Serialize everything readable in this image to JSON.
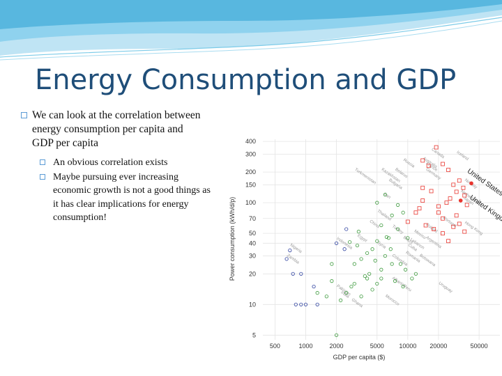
{
  "slide": {
    "title": "Energy Consumption and GDP",
    "bullets": [
      {
        "text": "We can look at the correlation between energy consumption per capita and GDP per capita",
        "sub_bullets": [
          "An obvious correlation exists",
          "Maybe pursuing ever increasing economic growth is not  a good things as it has clear implications for energy consumption!"
        ]
      }
    ]
  },
  "colors": {
    "title": "#1f4e79",
    "bullet": "#5b9bd5",
    "banner": "#4fb3dc",
    "red": "#e8352e",
    "green": "#3c9a3c",
    "blue": "#2a3e9e"
  },
  "chart_data": {
    "type": "scatter",
    "xlabel": "GDP per capita ($)",
    "ylabel": "Power consumption (kWh/d/p)",
    "x_scale": "log",
    "y_scale": "log",
    "xlim": [
      380,
      80000
    ],
    "ylim": [
      4.5,
      420
    ],
    "x_ticks": [
      500,
      1000,
      2000,
      5000,
      10000,
      20000,
      50000
    ],
    "y_ticks": [
      5,
      10,
      20,
      30,
      40,
      50,
      70,
      100,
      150,
      200,
      300,
      400
    ],
    "series": [
      {
        "color": "#e8352e",
        "marker": "square",
        "points": [
          [
            16000,
            230
          ],
          [
            19000,
            350
          ],
          [
            14000,
            260
          ],
          [
            22000,
            240
          ],
          [
            25000,
            210
          ],
          [
            32000,
            165
          ],
          [
            35000,
            140
          ],
          [
            28000,
            150
          ],
          [
            30000,
            128
          ],
          [
            36000,
            118
          ],
          [
            26000,
            110
          ],
          [
            38000,
            95
          ],
          [
            20000,
            92
          ],
          [
            24000,
            100
          ],
          [
            17000,
            130
          ],
          [
            14000,
            140
          ],
          [
            30000,
            75
          ],
          [
            22000,
            70
          ],
          [
            12000,
            80
          ],
          [
            15000,
            60
          ],
          [
            10000,
            65
          ],
          [
            22000,
            50
          ],
          [
            18000,
            55
          ],
          [
            32000,
            62
          ],
          [
            36000,
            52
          ],
          [
            28000,
            58
          ],
          [
            25000,
            42
          ],
          [
            20000,
            80
          ],
          [
            14000,
            105
          ],
          [
            13000,
            88
          ]
        ]
      },
      {
        "color": "#e8352e",
        "marker": "dot",
        "points": [
          [
            42000,
            155
          ],
          [
            33000,
            105
          ]
        ]
      },
      {
        "color": "#3c9a3c",
        "marker": "circle",
        "points": [
          [
            6000,
            120
          ],
          [
            5000,
            100
          ],
          [
            8000,
            95
          ],
          [
            9000,
            80
          ],
          [
            7000,
            75
          ],
          [
            5500,
            60
          ],
          [
            8000,
            55
          ],
          [
            6500,
            45
          ],
          [
            5000,
            42
          ],
          [
            4500,
            35
          ],
          [
            4000,
            32
          ],
          [
            3500,
            28
          ],
          [
            3000,
            25
          ],
          [
            6000,
            30
          ],
          [
            7000,
            25
          ],
          [
            5500,
            22
          ],
          [
            9500,
            22
          ],
          [
            8500,
            25
          ],
          [
            12000,
            20
          ],
          [
            11000,
            18
          ],
          [
            9000,
            15
          ],
          [
            5500,
            18
          ],
          [
            4000,
            18
          ],
          [
            3000,
            16
          ],
          [
            2800,
            15
          ],
          [
            2500,
            13
          ],
          [
            2200,
            11
          ],
          [
            3500,
            12
          ],
          [
            4500,
            14
          ],
          [
            5000,
            16
          ],
          [
            2000,
            5
          ],
          [
            1600,
            12
          ],
          [
            1800,
            17
          ],
          [
            1300,
            13
          ],
          [
            1800,
            25
          ],
          [
            4200,
            20
          ],
          [
            3800,
            19
          ],
          [
            7500,
            17
          ],
          [
            6800,
            35
          ],
          [
            10000,
            45
          ],
          [
            3200,
            38
          ],
          [
            2700,
            41
          ],
          [
            3300,
            52
          ],
          [
            6200,
            46
          ],
          [
            4800,
            27
          ]
        ]
      },
      {
        "color": "#2a3e9e",
        "marker": "circle",
        "points": [
          [
            700,
            34
          ],
          [
            650,
            28
          ],
          [
            750,
            20
          ],
          [
            900,
            20
          ],
          [
            900,
            10
          ],
          [
            800,
            10
          ],
          [
            1000,
            10
          ],
          [
            1200,
            15
          ],
          [
            1300,
            10
          ],
          [
            2500,
            55
          ],
          [
            2000,
            40
          ],
          [
            2400,
            35
          ]
        ]
      }
    ],
    "annotations": [
      {
        "text": "Canada",
        "x": 17000,
        "y": 330
      },
      {
        "text": "Iceland",
        "x": 30000,
        "y": 310
      },
      {
        "text": "Australia",
        "x": 14000,
        "y": 270
      },
      {
        "text": "Russia",
        "x": 9000,
        "y": 260
      },
      {
        "text": "France",
        "x": 15000,
        "y": 240
      },
      {
        "text": "Germany",
        "x": 15000,
        "y": 210
      },
      {
        "text": "Turkmenistan",
        "x": 3000,
        "y": 210
      },
      {
        "text": "Kazakhstan",
        "x": 5500,
        "y": 210
      },
      {
        "text": "Belarus",
        "x": 7500,
        "y": 210
      },
      {
        "text": "United States",
        "x": 38000,
        "y": 200
      },
      {
        "text": "Norway",
        "x": 36000,
        "y": 165
      },
      {
        "text": "Bulgaria",
        "x": 6500,
        "y": 165
      },
      {
        "text": "Netherlands",
        "x": 33000,
        "y": 128
      },
      {
        "text": "Japan",
        "x": 35000,
        "y": 110
      },
      {
        "text": "Iran",
        "x": 5800,
        "y": 120
      },
      {
        "text": "United Kingdom",
        "x": 40000,
        "y": 110
      },
      {
        "text": "Thailand",
        "x": 5000,
        "y": 82
      },
      {
        "text": "Portugal",
        "x": 22000,
        "y": 70
      },
      {
        "text": "China",
        "x": 4200,
        "y": 65
      },
      {
        "text": "Hong Kong",
        "x": 36000,
        "y": 63
      },
      {
        "text": "Poland",
        "x": 15000,
        "y": 60
      },
      {
        "text": "Turkey",
        "x": 7000,
        "y": 58
      },
      {
        "text": "Mexico",
        "x": 11500,
        "y": 52
      },
      {
        "text": "Brazil",
        "x": 9000,
        "y": 45
      },
      {
        "text": "Argentina",
        "x": 15000,
        "y": 45
      },
      {
        "text": "Egypt",
        "x": 3200,
        "y": 47
      },
      {
        "text": "Indonesia",
        "x": 2000,
        "y": 44
      },
      {
        "text": "Lebanon",
        "x": 10500,
        "y": 43
      },
      {
        "text": "Syria",
        "x": 5000,
        "y": 40
      },
      {
        "text": "Cuba",
        "x": 10000,
        "y": 38
      },
      {
        "text": "Romania",
        "x": 9500,
        "y": 32
      },
      {
        "text": "Nigeria",
        "x": 700,
        "y": 38
      },
      {
        "text": "Colombia",
        "x": 7000,
        "y": 30
      },
      {
        "text": "Botswana",
        "x": 13000,
        "y": 30
      },
      {
        "text": "Zambia",
        "x": 650,
        "y": 30
      },
      {
        "text": "Albania",
        "x": 7000,
        "y": 18
      },
      {
        "text": "Uruguay",
        "x": 20000,
        "y": 16
      },
      {
        "text": "Peru",
        "x": 9000,
        "y": 15
      },
      {
        "text": "Pakistan",
        "x": 2000,
        "y": 15
      },
      {
        "text": "India",
        "x": 2200,
        "y": 13
      },
      {
        "text": "Morocco",
        "x": 6000,
        "y": 12
      },
      {
        "text": "Ghana",
        "x": 2800,
        "y": 11
      }
    ]
  }
}
